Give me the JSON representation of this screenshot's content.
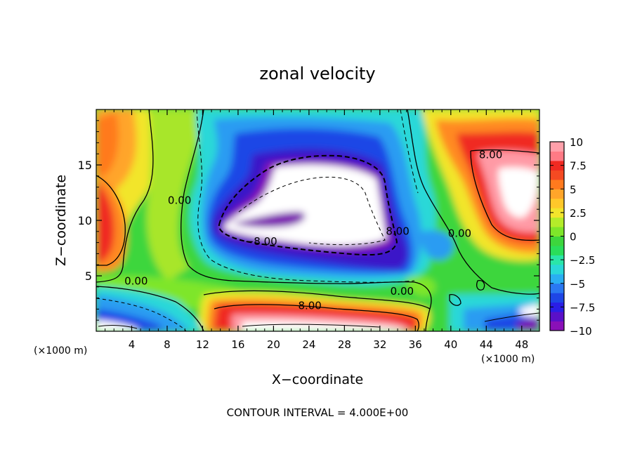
{
  "chart_data": {
    "type": "heatmap",
    "title": "zonal velocity",
    "xlabel": "X−coordinate",
    "ylabel": "Z−coordinate",
    "x_unit_left": "(×1000 m)",
    "x_unit_right": "(×1000 m)",
    "footer": "CONTOUR INTERVAL = 4.000E+00",
    "xlim": [
      0,
      50
    ],
    "ylim": [
      0,
      20
    ],
    "xticks": [
      4,
      8,
      12,
      16,
      20,
      24,
      28,
      32,
      36,
      40,
      44,
      48
    ],
    "yticks": [
      5,
      10,
      15
    ],
    "colorbar": {
      "range": [
        -10,
        10
      ],
      "ticks": [
        "10",
        "7.5",
        "5",
        "2.5",
        "0",
        "−2.5",
        "−5",
        "−7.5",
        "−10"
      ],
      "tick_values": [
        10,
        7.5,
        5,
        2.5,
        0,
        -2.5,
        -5,
        -7.5,
        -10
      ]
    },
    "contour_labels": [
      {
        "text": "0.00",
        "x": 4.5,
        "y": 4.2
      },
      {
        "text": "0.00",
        "x": 9.4,
        "y": 11.5
      },
      {
        "text": "−8.00",
        "x": 18.6,
        "y": 7.8
      },
      {
        "text": "8.00",
        "x": 24.1,
        "y": 2.0
      },
      {
        "text": "0.00",
        "x": 34.5,
        "y": 3.3
      },
      {
        "text": "8.00",
        "x": 34.0,
        "y": 8.7
      },
      {
        "text": "0.00",
        "x": 41.0,
        "y": 8.5
      },
      {
        "text": "8.00",
        "x": 44.5,
        "y": 15.6
      }
    ],
    "features": [
      {
        "name": "negative jet core",
        "x": 26,
        "y": 11.5,
        "value": -12
      },
      {
        "name": "positive core right",
        "x": 46.5,
        "y": 12.5,
        "value": 11
      },
      {
        "name": "positive core left",
        "x": 0.5,
        "y": 10,
        "value": 7.5
      },
      {
        "name": "positive layer bottom",
        "x": 24,
        "y": 1.2,
        "value": 12
      }
    ]
  }
}
